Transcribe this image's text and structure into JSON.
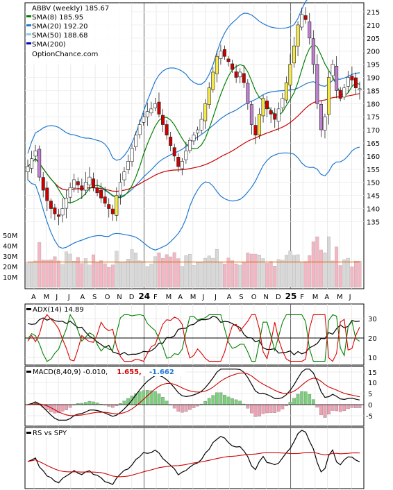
{
  "main": {
    "legend": {
      "title": "ABBV (weekly) 185.67",
      "items": [
        {
          "label": "SMA(8) 185.95",
          "color": "#008000"
        },
        {
          "label": "SMA(20) 192.20",
          "color": "#1e78d2"
        },
        {
          "label": "SMA(50) 188.68",
          "color": "#87ceeb"
        },
        {
          "label": "SMA(200)",
          "color": "#0000cc"
        }
      ],
      "source": "OptionChance.com"
    },
    "price_ticks": [
      "215",
      "210",
      "205",
      "200",
      "195",
      "190",
      "185",
      "180",
      "175",
      "170",
      "165",
      "160",
      "155",
      "150",
      "145",
      "140",
      "135"
    ],
    "volume_ticks": [
      "50M",
      "40M",
      "30M",
      "20M",
      "10M"
    ],
    "month_labels": [
      "A",
      "M",
      "J",
      "J",
      "A",
      "S",
      "O",
      "N",
      "D",
      "24",
      "F",
      "M",
      "A",
      "M",
      "J",
      "J",
      "A",
      "S",
      "O",
      "N",
      "D",
      "25",
      "F",
      "M",
      "A",
      "M",
      "J"
    ]
  },
  "adx": {
    "label": "ADX(14) 14.89",
    "ticks": [
      "30",
      "20",
      "10"
    ]
  },
  "macd": {
    "label": "MACD(8,40,9) -0.010,",
    "value_red": "1.655,",
    "value_blue": "-1.662",
    "ticks": [
      "15",
      "10",
      "5",
      "0",
      "-5"
    ]
  },
  "rs": {
    "label": "RS vs SPY"
  },
  "colors": {
    "up": "#ffffff",
    "down": "#cc0000",
    "sma8": "#008000",
    "bb": "#1e78d2",
    "sma50": "#cc0000",
    "vol_up": "#d8d8d8",
    "vol_down": "#f4b6c2",
    "vol_avg": "#e07020",
    "adx": "#000000",
    "di_plus": "#008000",
    "di_minus": "#dd0000",
    "hist_pos": "#7ccf7c",
    "hist_neg": "#f0a0b4"
  },
  "chart_data": {
    "type": "candlestick",
    "ticker": "ABBV",
    "period": "weekly",
    "closes": [
      156,
      159,
      162,
      152,
      147,
      143,
      140,
      138,
      137,
      140,
      144,
      148,
      151,
      149,
      147,
      150,
      152,
      148,
      146,
      144,
      142,
      140,
      138,
      145,
      150,
      154,
      158,
      163,
      168,
      172,
      175,
      177,
      178,
      180,
      176,
      172,
      168,
      164,
      160,
      156,
      158,
      162,
      166,
      168,
      170,
      174,
      180,
      186,
      192,
      198,
      200,
      198,
      196,
      193,
      190,
      192,
      188,
      180,
      172,
      168,
      176,
      182,
      178,
      176,
      174,
      178,
      182,
      188,
      195,
      202,
      210,
      214,
      212,
      205,
      195,
      180,
      170,
      175,
      190,
      195,
      185,
      182,
      186,
      190,
      189,
      186,
      185.67
    ]
  }
}
